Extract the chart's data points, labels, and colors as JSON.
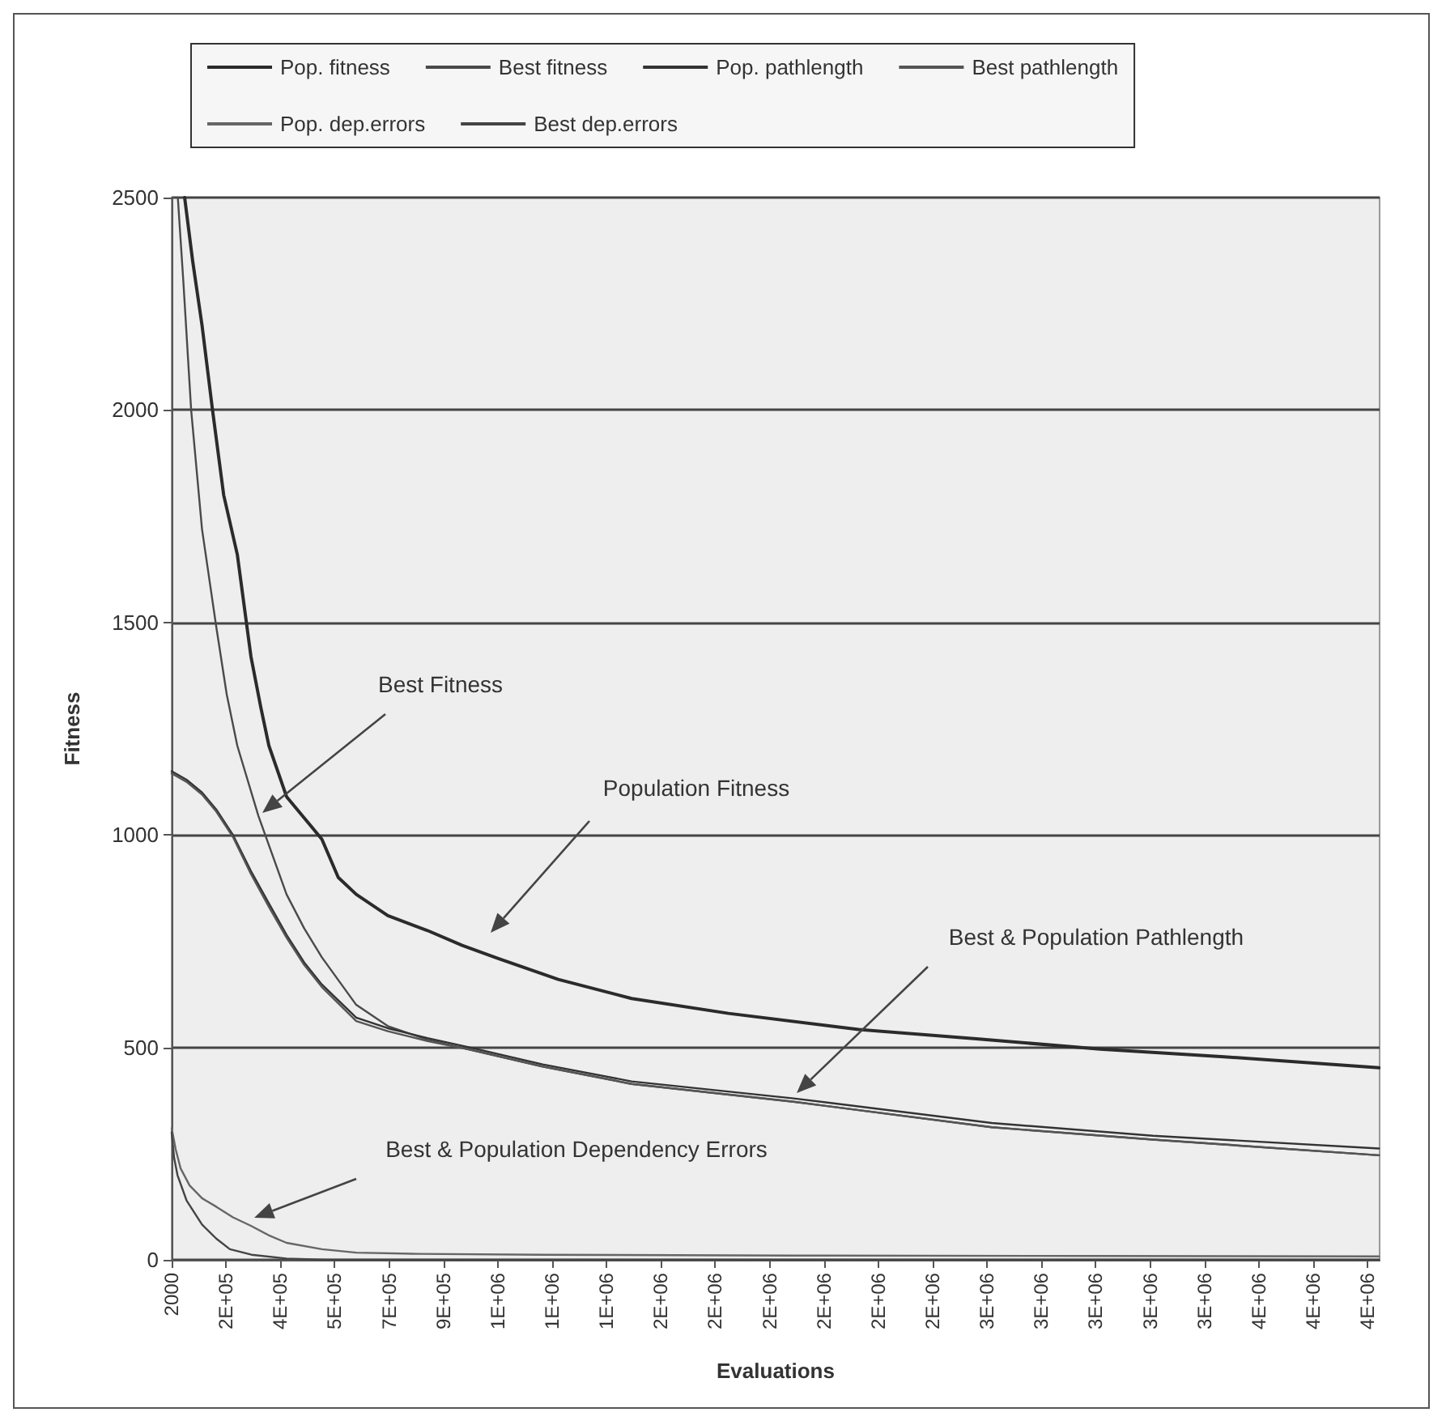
{
  "chart_data": {
    "type": "line",
    "xlabel": "Evaluations",
    "ylabel": "Fitness",
    "xlim": [
      2000,
      3902000
    ],
    "ylim": [
      0,
      2500
    ],
    "yticks": [
      0,
      500,
      1000,
      1500,
      2000,
      2500
    ],
    "xticks": [
      {
        "value": 2000,
        "label": "2000"
      },
      {
        "value": 177500,
        "label": "2E+05"
      },
      {
        "value": 353000,
        "label": "4E+05"
      },
      {
        "value": 528500,
        "label": "5E+05"
      },
      {
        "value": 704000,
        "label": "7E+05"
      },
      {
        "value": 879500,
        "label": "9E+05"
      },
      {
        "value": 1055000,
        "label": "1E+06"
      },
      {
        "value": 1230500,
        "label": "1E+06"
      },
      {
        "value": 1406000,
        "label": "1E+06"
      },
      {
        "value": 1581500,
        "label": "2E+06"
      },
      {
        "value": 1757000,
        "label": "2E+06"
      },
      {
        "value": 1932500,
        "label": "2E+06"
      },
      {
        "value": 2108000,
        "label": "2E+06"
      },
      {
        "value": 2283500,
        "label": "2E+06"
      },
      {
        "value": 2459000,
        "label": "2E+06"
      },
      {
        "value": 2634500,
        "label": "3E+06"
      },
      {
        "value": 2810000,
        "label": "3E+06"
      },
      {
        "value": 2985500,
        "label": "3E+06"
      },
      {
        "value": 3161000,
        "label": "3E+06"
      },
      {
        "value": 3336500,
        "label": "3E+06"
      },
      {
        "value": 3512000,
        "label": "4E+06"
      },
      {
        "value": 3687500,
        "label": "4E+06"
      },
      {
        "value": 3863000,
        "label": "4E+06"
      }
    ],
    "grid": "y",
    "legend": "top",
    "series": [
      {
        "name": "Pop. fitness",
        "color": "#2b2b2b",
        "x": [
          44000,
          70000,
          100000,
          134000,
          170000,
          214000,
          258000,
          290000,
          316000,
          373000,
          430000,
          487000,
          540000,
          598000,
          700000,
          828000,
          940000,
          1053000,
          1250000,
          1487000,
          1800000,
          2220000,
          2600000,
          3000000,
          3400000,
          3900000
        ],
        "values": [
          2500,
          2350,
          2200,
          2000,
          1800,
          1660,
          1420,
          1300,
          1210,
          1090,
          1040,
          990,
          900,
          860,
          810,
          775,
          740,
          710,
          660,
          615,
          580,
          542,
          520,
          496,
          478,
          452
        ]
      },
      {
        "name": "Best fitness",
        "color": "#4a4a4a",
        "x": [
          22000,
          40000,
          65000,
          100000,
          146000,
          180000,
          214000,
          282000,
          373000,
          430000,
          487000,
          598000,
          700000,
          828000,
          964000,
          1200000,
          1487000,
          2010000,
          2650000,
          3170000,
          3900000
        ],
        "values": [
          2500,
          2300,
          2000,
          1720,
          1490,
          1330,
          1210,
          1045,
          860,
          780,
          712,
          600,
          550,
          518,
          495,
          455,
          414,
          372,
          312,
          283,
          246
        ]
      },
      {
        "name": "Pop. pathlength",
        "color": "#333333",
        "x": [
          2000,
          50000,
          100000,
          146000,
          200000,
          258000,
          315000,
          373000,
          430000,
          487000,
          598000,
          700000,
          828000,
          964000,
          1200000,
          1487000,
          2010000,
          2650000,
          3170000,
          3900000
        ],
        "values": [
          1150,
          1130,
          1100,
          1060,
          1000,
          915,
          840,
          765,
          700,
          648,
          570,
          545,
          522,
          500,
          460,
          420,
          380,
          322,
          292,
          262
        ]
      },
      {
        "name": "Best pathlength",
        "color": "#555555",
        "x": [
          2000,
          50000,
          100000,
          146000,
          200000,
          258000,
          315000,
          373000,
          430000,
          487000,
          598000,
          700000,
          828000,
          964000,
          1200000,
          1487000,
          2010000,
          2650000,
          3170000,
          3900000
        ],
        "values": [
          1145,
          1125,
          1095,
          1055,
          995,
          908,
          832,
          758,
          694,
          642,
          562,
          538,
          515,
          495,
          455,
          414,
          372,
          312,
          283,
          246
        ]
      },
      {
        "name": "Pop. dep.errors",
        "color": "#666666",
        "x": [
          2000,
          15000,
          31000,
          60000,
          100000,
          146000,
          200000,
          258000,
          315000,
          373000,
          487000,
          598000,
          800000,
          1200000,
          2000000,
          3000000,
          3900000
        ],
        "values": [
          310,
          260,
          215,
          175,
          145,
          125,
          100,
          80,
          58,
          40,
          25,
          17,
          14,
          12,
          10,
          9,
          8
        ]
      },
      {
        "name": "Best dep.errors",
        "color": "#444444",
        "x": [
          2000,
          10000,
          21000,
          50000,
          100000,
          146000,
          190000,
          260000,
          373000,
          500000,
          3900000
        ],
        "values": [
          300,
          240,
          199,
          140,
          83,
          50,
          25,
          12,
          3,
          0,
          0
        ]
      }
    ],
    "annotations": [
      "Best Fitness",
      "Population Fitness",
      "Best & Population Pathlength",
      "Best & Population Dependency Errors"
    ]
  }
}
